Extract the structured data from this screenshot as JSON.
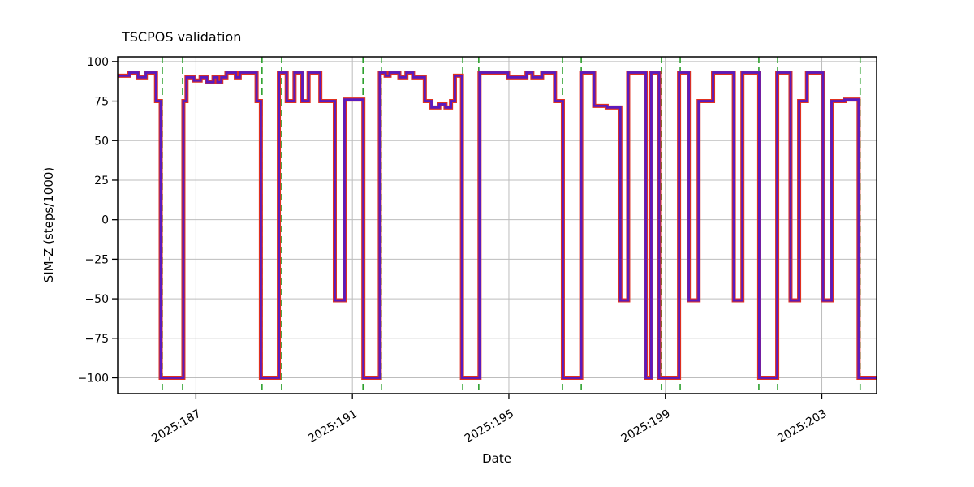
{
  "chart_data": {
    "type": "line",
    "title": "TSCPOS validation",
    "xlabel": "Date",
    "ylabel": "SIM-Z (steps/1000)",
    "x_domain": [
      185.0,
      204.4
    ],
    "ylim": [
      -110,
      103
    ],
    "grid": true,
    "legend": "none",
    "yticks": [
      {
        "value": -100,
        "label": "−100"
      },
      {
        "value": -75,
        "label": "−75"
      },
      {
        "value": -50,
        "label": "−50"
      },
      {
        "value": -25,
        "label": "−25"
      },
      {
        "value": 0,
        "label": "0"
      },
      {
        "value": 25,
        "label": "25"
      },
      {
        "value": 50,
        "label": "50"
      },
      {
        "value": 75,
        "label": "75"
      },
      {
        "value": 100,
        "label": "100"
      }
    ],
    "xticks": [
      {
        "value": 187,
        "label": "2025:187"
      },
      {
        "value": 191,
        "label": "2025:191"
      },
      {
        "value": 195,
        "label": "2025:195"
      },
      {
        "value": 199,
        "label": "2025:199"
      },
      {
        "value": 203,
        "label": "2025:203"
      }
    ],
    "vlines": {
      "style": "dashed",
      "x": [
        186.14,
        186.66,
        188.69,
        189.19,
        191.27,
        191.74,
        193.82,
        194.23,
        196.37,
        196.85,
        198.9,
        199.38,
        201.39,
        201.87,
        203.98
      ]
    },
    "series": [
      {
        "name": "SIM-Z",
        "step_mode": "post",
        "steps": [
          [
            185.0,
            91
          ],
          [
            185.3,
            93
          ],
          [
            185.52,
            90
          ],
          [
            185.72,
            93
          ],
          [
            185.98,
            75
          ],
          [
            186.1,
            -100
          ],
          [
            186.68,
            75
          ],
          [
            186.76,
            90
          ],
          [
            186.95,
            88
          ],
          [
            187.12,
            90
          ],
          [
            187.28,
            87
          ],
          [
            187.45,
            90
          ],
          [
            187.55,
            87
          ],
          [
            187.65,
            90
          ],
          [
            187.78,
            93
          ],
          [
            188.02,
            90
          ],
          [
            188.12,
            93
          ],
          [
            188.55,
            75
          ],
          [
            188.66,
            -100
          ],
          [
            189.12,
            93
          ],
          [
            189.32,
            75
          ],
          [
            189.52,
            93
          ],
          [
            189.72,
            75
          ],
          [
            189.88,
            93
          ],
          [
            190.18,
            75
          ],
          [
            190.55,
            -51
          ],
          [
            190.8,
            76
          ],
          [
            191.28,
            -100
          ],
          [
            191.7,
            93
          ],
          [
            191.85,
            91
          ],
          [
            191.95,
            93
          ],
          [
            192.2,
            90
          ],
          [
            192.38,
            93
          ],
          [
            192.55,
            90
          ],
          [
            192.85,
            75
          ],
          [
            193.02,
            71
          ],
          [
            193.22,
            73
          ],
          [
            193.38,
            71
          ],
          [
            193.52,
            75
          ],
          [
            193.62,
            91
          ],
          [
            193.8,
            -100
          ],
          [
            194.25,
            93
          ],
          [
            194.98,
            90
          ],
          [
            195.45,
            93
          ],
          [
            195.6,
            90
          ],
          [
            195.85,
            93
          ],
          [
            196.18,
            75
          ],
          [
            196.38,
            -100
          ],
          [
            196.85,
            93
          ],
          [
            197.18,
            72
          ],
          [
            197.5,
            71
          ],
          [
            197.85,
            -51
          ],
          [
            198.05,
            93
          ],
          [
            198.5,
            -100
          ],
          [
            198.64,
            93
          ],
          [
            198.84,
            -100
          ],
          [
            199.35,
            93
          ],
          [
            199.6,
            -51
          ],
          [
            199.85,
            75
          ],
          [
            200.22,
            93
          ],
          [
            200.75,
            -51
          ],
          [
            200.97,
            93
          ],
          [
            201.4,
            -100
          ],
          [
            201.86,
            93
          ],
          [
            202.2,
            -51
          ],
          [
            202.42,
            75
          ],
          [
            202.62,
            93
          ],
          [
            203.03,
            -51
          ],
          [
            203.25,
            75
          ],
          [
            203.58,
            76
          ],
          [
            203.94,
            -100
          ]
        ]
      }
    ],
    "colors": {
      "line_outer": "#e0311f",
      "line_inner": "#5a1bbf",
      "vline": "#2ca02c",
      "grid": "#bdbdbd",
      "axis": "#000000",
      "background": "#ffffff"
    }
  }
}
